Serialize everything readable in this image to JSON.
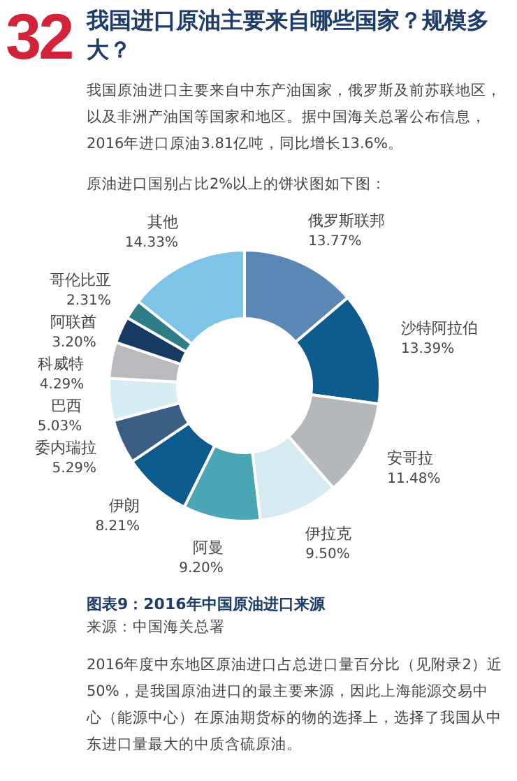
{
  "chart_data": {
    "type": "donut",
    "title": "图表9：2016年中国原油进口来源",
    "categories": [
      "俄罗斯联邦",
      "沙特阿拉伯",
      "安哥拉",
      "伊拉克",
      "阿曼",
      "伊朗",
      "委内瑞拉",
      "巴西",
      "科威特",
      "阿联酋",
      "哥伦比亚",
      "其他"
    ],
    "values": [
      13.77,
      13.39,
      11.48,
      9.5,
      9.2,
      8.21,
      5.29,
      5.03,
      4.29,
      3.2,
      2.31,
      14.33
    ],
    "value_labels": [
      "13.77%",
      "13.39%",
      "11.48%",
      "9.50%",
      "9.20%",
      "8.21%",
      "5.29%",
      "5.03%",
      "4.29%",
      "3.20%",
      "2.31%",
      "14.33%"
    ],
    "colors": [
      "#5b87b5",
      "#0e5c8e",
      "#b5b8bb",
      "#d5eaf1",
      "#4aa5b5",
      "#0d5a8c",
      "#3a5f82",
      "#d6ecf3",
      "#b8babd",
      "#173a63",
      "#2e7c86",
      "#7dc4e6"
    ],
    "annotations": [
      "32",
      "我国进口原油主要来自哪些国家？规模多大？",
      "我国原油进口主要来自中东产油国家，俄罗斯及前苏联地区，以及非洲产油国等国家和地区。据中国海关总署公布信息，2016年进口原油3.81亿吨，同比增长13.6%。",
      "原油进口国别占比2%以上的饼状图如下图：",
      "来源：中国海关总署",
      "2016年度中东地区原油进口占总进口量百分比（见附录2）近50%，是我国原油进口的最主要来源，因此上海能源交易中心（能源中心）在原油期货标的物的选择上，选择了我国从中东进口量最大的中质含硫原油。"
    ]
  }
}
